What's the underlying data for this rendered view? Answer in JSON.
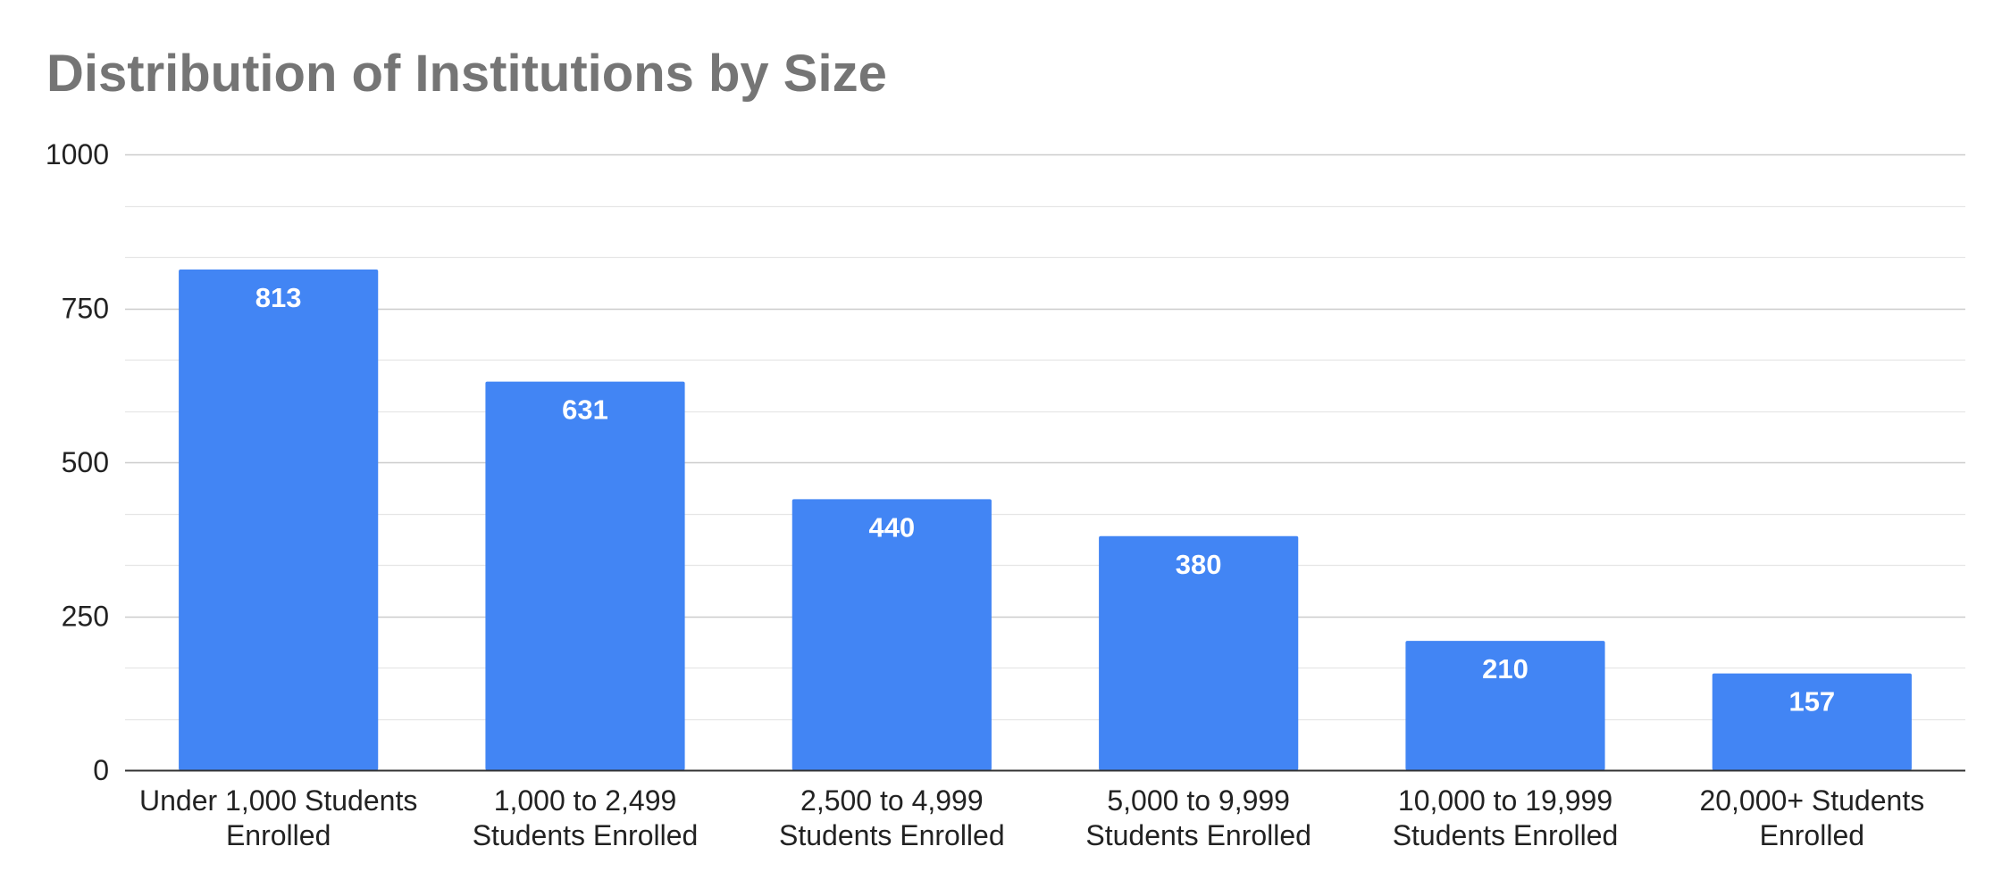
{
  "chart_data": {
    "type": "bar",
    "title": "Distribution of Institutions by Size",
    "xlabel": "",
    "ylabel": "",
    "categories": [
      [
        "Under 1,000 Students",
        "Enrolled"
      ],
      [
        "1,000 to 2,499",
        "Students Enrolled"
      ],
      [
        "2,500 to 4,999",
        "Students Enrolled"
      ],
      [
        "5,000 to 9,999",
        "Students Enrolled"
      ],
      [
        "10,000 to 19,999",
        "Students Enrolled"
      ],
      [
        "20,000+ Students",
        "Enrolled"
      ]
    ],
    "values": [
      813,
      631,
      440,
      380,
      210,
      157
    ],
    "ylim": [
      0,
      1000
    ],
    "yticks": [
      "0",
      "250",
      "500",
      "750",
      "1000"
    ],
    "grid": true,
    "legend": "none",
    "data_labels": [
      "813",
      "631",
      "440",
      "380",
      "210",
      "157"
    ],
    "colors": {
      "bar": "#4285f4",
      "title": "#757575",
      "major_grid": "#cccccc",
      "minor_grid": "#e6e6e6",
      "axis": "#333333"
    }
  }
}
